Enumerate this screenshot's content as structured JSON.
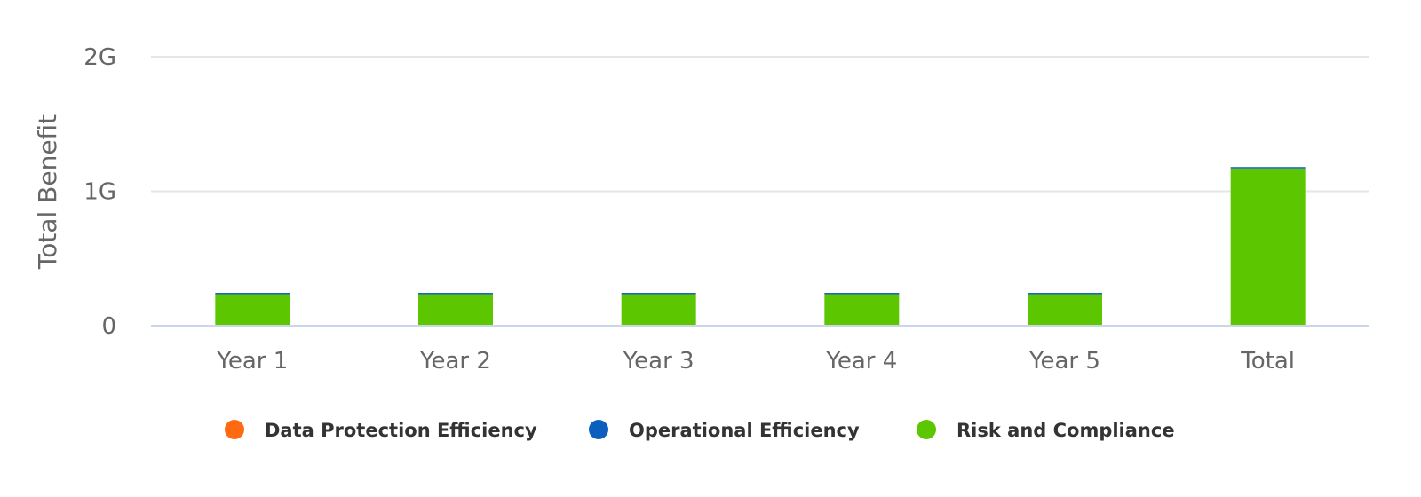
{
  "chart_data": {
    "type": "bar",
    "stacked": true,
    "categories": [
      "Year 1",
      "Year 2",
      "Year 3",
      "Year 4",
      "Year 5",
      "Total"
    ],
    "series": [
      {
        "name": "Data Protection Efficiency",
        "color": "#ff6a10",
        "values": [
          0,
          0,
          0,
          0,
          0,
          0
        ]
      },
      {
        "name": "Operational Efficiency",
        "color": "#0c5fbd",
        "values": [
          0.002,
          0.002,
          0.002,
          0.002,
          0.002,
          0.01
        ]
      },
      {
        "name": "Risk and Compliance",
        "color": "#5cc600",
        "values": [
          0.234,
          0.234,
          0.234,
          0.234,
          0.234,
          1.17
        ]
      }
    ],
    "ylabel": "Total Benefit",
    "xlabel": "",
    "ylim": [
      0,
      2
    ],
    "yticks": [
      {
        "value": 0,
        "label": "0"
      },
      {
        "value": 1,
        "label": "1G"
      },
      {
        "value": 2,
        "label": "2G"
      }
    ],
    "grid": true,
    "legend_position": "bottom"
  }
}
